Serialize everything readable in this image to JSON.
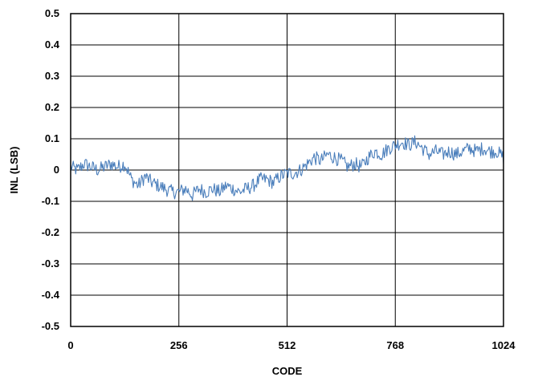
{
  "chart_data": {
    "type": "line",
    "title": "",
    "xlabel": "CODE",
    "ylabel": "INL (LSB)",
    "xlim": [
      0,
      1024
    ],
    "ylim": [
      -0.5,
      0.5
    ],
    "x_ticks": [
      0,
      256,
      512,
      768,
      1024
    ],
    "y_ticks": [
      -0.5,
      -0.4,
      -0.3,
      -0.2,
      -0.1,
      0,
      0.1,
      0.2,
      0.3,
      0.4,
      0.5
    ],
    "y_tick_labels": [
      "-0.5",
      "-0.4",
      "-0.3",
      "-0.2",
      "-0.1",
      "0",
      "0.1",
      "0.2",
      "0.3",
      "0.4",
      "0.5"
    ],
    "grid": true,
    "series_color": "#4a7ebb",
    "series": [
      {
        "x": [
          0,
          16,
          32,
          48,
          64,
          80,
          96,
          112,
          128,
          144,
          160,
          176,
          192,
          208,
          224,
          240,
          256,
          272,
          288,
          304,
          320,
          336,
          352,
          368,
          384,
          400,
          416,
          432,
          448,
          464,
          480,
          496,
          512,
          528,
          544,
          560,
          576,
          592,
          608,
          624,
          640,
          656,
          672,
          688,
          704,
          720,
          736,
          752,
          768,
          784,
          800,
          816,
          832,
          848,
          864,
          880,
          896,
          912,
          928,
          944,
          960,
          976,
          992,
          1008,
          1024
        ],
        "y": [
          0.01,
          0.0,
          0.02,
          0.01,
          0.0,
          0.01,
          0.02,
          0.01,
          0.02,
          -0.03,
          -0.05,
          -0.02,
          -0.04,
          -0.05,
          -0.06,
          -0.07,
          -0.07,
          -0.06,
          -0.08,
          -0.06,
          -0.07,
          -0.06,
          -0.07,
          -0.05,
          -0.06,
          -0.07,
          -0.06,
          -0.05,
          -0.03,
          -0.03,
          -0.04,
          -0.02,
          -0.01,
          -0.01,
          0.0,
          0.02,
          0.04,
          0.03,
          0.05,
          0.04,
          0.03,
          0.01,
          0.02,
          0.01,
          0.04,
          0.06,
          0.05,
          0.07,
          0.08,
          0.09,
          0.08,
          0.09,
          0.07,
          0.05,
          0.06,
          0.05,
          0.06,
          0.05,
          0.06,
          0.07,
          0.06,
          0.07,
          0.06,
          0.06,
          0.04
        ]
      }
    ]
  }
}
